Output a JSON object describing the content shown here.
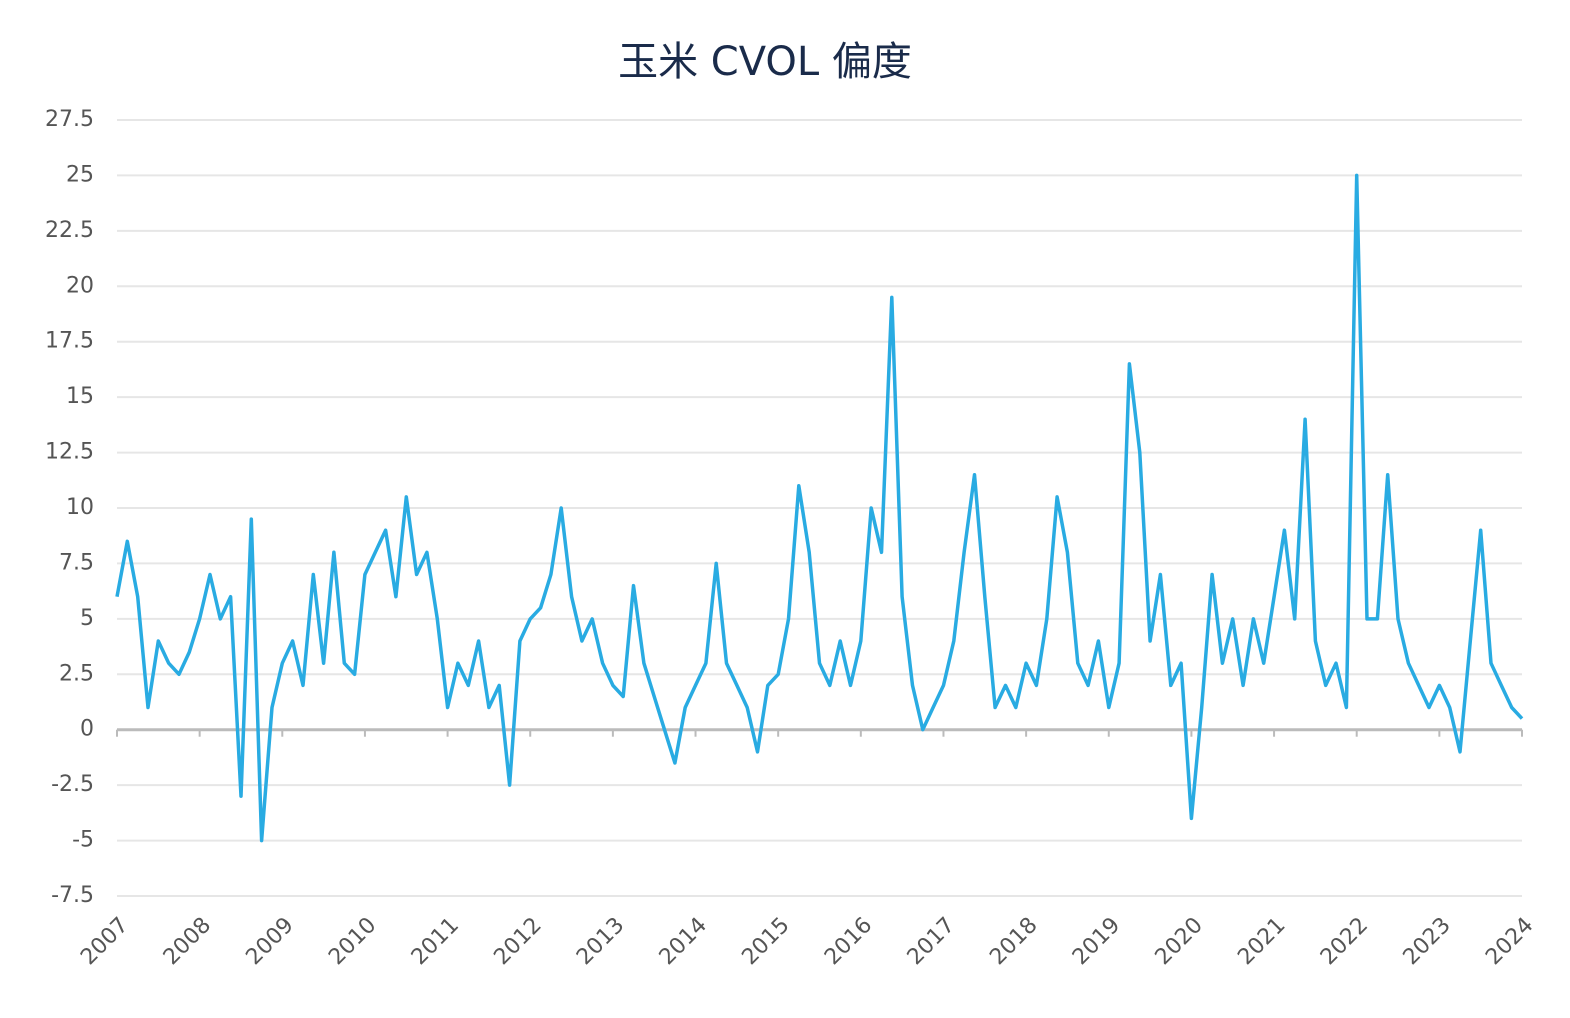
{
  "chart_data": {
    "type": "line",
    "title": "玉米 CVOL 偏度",
    "x": [
      2007,
      2007.125,
      2007.25,
      2007.375,
      2007.5,
      2007.625,
      2007.75,
      2007.875,
      2008,
      2008.125,
      2008.25,
      2008.375,
      2008.5,
      2008.625,
      2008.75,
      2008.875,
      2009,
      2009.125,
      2009.25,
      2009.375,
      2009.5,
      2009.625,
      2009.75,
      2009.875,
      2010,
      2010.125,
      2010.25,
      2010.375,
      2010.5,
      2010.625,
      2010.75,
      2010.875,
      2011,
      2011.125,
      2011.25,
      2011.375,
      2011.5,
      2011.625,
      2011.75,
      2011.875,
      2012,
      2012.125,
      2012.25,
      2012.375,
      2012.5,
      2012.625,
      2012.75,
      2012.875,
      2013,
      2013.125,
      2013.25,
      2013.375,
      2013.5,
      2013.625,
      2013.75,
      2013.875,
      2014,
      2014.125,
      2014.25,
      2014.375,
      2014.5,
      2014.625,
      2014.75,
      2014.875,
      2015,
      2015.125,
      2015.25,
      2015.375,
      2015.5,
      2015.625,
      2015.75,
      2015.875,
      2016,
      2016.125,
      2016.25,
      2016.375,
      2016.5,
      2016.625,
      2016.75,
      2016.875,
      2017,
      2017.125,
      2017.25,
      2017.375,
      2017.5,
      2017.625,
      2017.75,
      2017.875,
      2018,
      2018.125,
      2018.25,
      2018.375,
      2018.5,
      2018.625,
      2018.75,
      2018.875,
      2019,
      2019.125,
      2019.25,
      2019.375,
      2019.5,
      2019.625,
      2019.75,
      2019.875,
      2020,
      2020.125,
      2020.25,
      2020.375,
      2020.5,
      2020.625,
      2020.75,
      2020.875,
      2021,
      2021.125,
      2021.25,
      2021.375,
      2021.5,
      2021.625,
      2021.75,
      2021.875,
      2022,
      2022.125,
      2022.25,
      2022.375,
      2022.5,
      2022.625,
      2022.75,
      2022.875,
      2023,
      2023.125,
      2023.25,
      2023.375,
      2023.5,
      2023.625,
      2023.75,
      2023.875,
      2024
    ],
    "series": [
      {
        "color": "#29abe2",
        "values": [
          6,
          8.5,
          6,
          1,
          4,
          3,
          2.5,
          3.5,
          5,
          7,
          5,
          6,
          -3,
          9.5,
          -5,
          1,
          3,
          4,
          2,
          7,
          3,
          8,
          3,
          2.5,
          7,
          8,
          9,
          6,
          10.5,
          7,
          8,
          5,
          1,
          3,
          2,
          4,
          1,
          2,
          -2.5,
          4,
          5,
          5.5,
          7,
          10,
          6,
          4,
          5,
          3,
          2,
          1.5,
          6.5,
          3,
          1.5,
          0,
          -1.5,
          1,
          2,
          3,
          7.5,
          3,
          2,
          1,
          -1,
          2,
          2.5,
          5,
          11,
          8,
          3,
          2,
          4,
          2,
          4,
          10,
          8,
          19.5,
          6,
          2,
          0,
          1,
          2,
          4,
          8,
          11.5,
          6,
          1,
          2,
          1,
          3,
          2,
          5,
          10.5,
          8,
          3,
          2,
          4,
          1,
          3,
          16.5,
          12.5,
          4,
          7,
          2,
          3,
          -4,
          1,
          7,
          3,
          5,
          2,
          5,
          3,
          6,
          9,
          5,
          14,
          4,
          2,
          3,
          1,
          25,
          5,
          5,
          11.5,
          5,
          3,
          2,
          1,
          2,
          1,
          -1,
          4,
          9,
          3,
          2,
          1,
          0.5
        ]
      }
    ],
    "xlim": [
      2007,
      2024
    ],
    "xticks": [
      2007,
      2008,
      2009,
      2010,
      2011,
      2012,
      2013,
      2014,
      2015,
      2016,
      2017,
      2018,
      2019,
      2020,
      2021,
      2022,
      2023,
      2024
    ],
    "ylim": [
      -7.5,
      27.5
    ],
    "yticks": [
      27.5,
      25,
      22.5,
      20,
      17.5,
      15,
      12.5,
      10,
      7.5,
      5,
      2.5,
      0,
      -2.5,
      -5,
      -7.5
    ],
    "grid": true
  }
}
